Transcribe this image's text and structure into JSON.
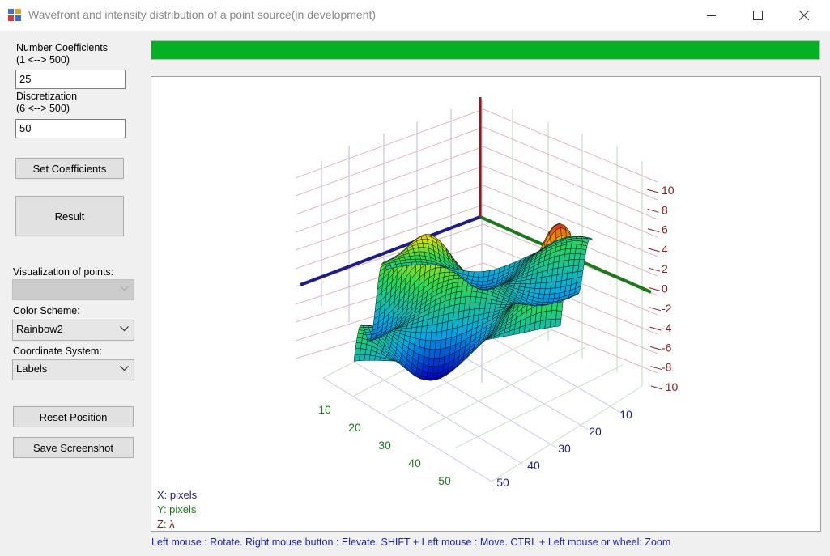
{
  "window": {
    "title": "Wavefront and intensity distribution of a point source(in development)",
    "minimize_icon": "minimize-icon",
    "maximize_icon": "maximize-icon",
    "close_icon": "close-icon"
  },
  "controls": {
    "num_coeff_label_1": "Number Coefficients",
    "num_coeff_label_2": "(1 <--> 500)",
    "num_coeff_value": "25",
    "discretization_label_1": "Discretization",
    "discretization_label_2": "(6 <--> 500)",
    "discretization_value": "50",
    "set_coefficients_label": "Set Coefficients",
    "result_label": "Result",
    "visualization_label": "Visualization of points:",
    "visualization_value": "",
    "color_scheme_label": "Color Scheme:",
    "color_scheme_value": "Rainbow2",
    "coordinate_system_label": "Coordinate System:",
    "coordinate_system_value": "Labels",
    "reset_position_label": "Reset Position",
    "save_screenshot_label": "Save Screenshot"
  },
  "progress": {
    "value": 1.0,
    "color": "#06b025"
  },
  "plot": {
    "z_ticks": [
      "10",
      "8",
      "6",
      "4",
      "2",
      "0",
      "-2",
      "-4",
      "-6",
      "-8",
      "-10"
    ],
    "x_ticks": [
      "10",
      "20",
      "30",
      "40",
      "50"
    ],
    "y_ticks": [
      "10",
      "20",
      "30",
      "40",
      "50"
    ],
    "legend_x": "X: pixels",
    "legend_y": "Y: pixels",
    "legend_z": "Z: λ",
    "colors": {
      "x_axis": "#1c1c8c",
      "y_axis": "#1a7a1a",
      "z_axis": "#8c1c1c",
      "color_scheme": "rainbow"
    }
  },
  "status": {
    "hint": "Left mouse : Rotate. Right mouse button : Elevate. SHIFT + Left mouse : Move. CTRL + Left mouse or wheel: Zoom"
  }
}
